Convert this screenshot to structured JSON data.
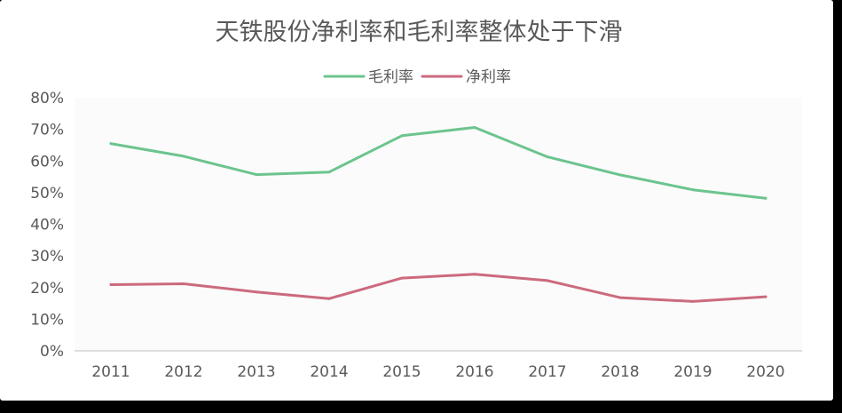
{
  "chart_data": {
    "type": "line",
    "title": "天铁股份净利率和毛利率整体处于下滑",
    "xlabel": "",
    "ylabel": "",
    "categories": [
      "2011",
      "2012",
      "2013",
      "2014",
      "2015",
      "2016",
      "2017",
      "2018",
      "2019",
      "2020"
    ],
    "y_ticks": [
      "0%",
      "10%",
      "20%",
      "30%",
      "40%",
      "50%",
      "60%",
      "70%",
      "80%"
    ],
    "ylim": [
      0,
      80
    ],
    "grid": false,
    "legend_position": "top-center",
    "series": [
      {
        "name": "毛利率",
        "color": "#6cc48e",
        "values": [
          65.5,
          61.5,
          55.7,
          56.5,
          68,
          70.6,
          61.3,
          55.6,
          50.9,
          48.2
        ]
      },
      {
        "name": "净利率",
        "color": "#cc6a7e",
        "values": [
          20.9,
          21.2,
          18.6,
          16.5,
          23,
          24.2,
          22.2,
          16.8,
          15.6,
          17.1
        ]
      }
    ]
  }
}
